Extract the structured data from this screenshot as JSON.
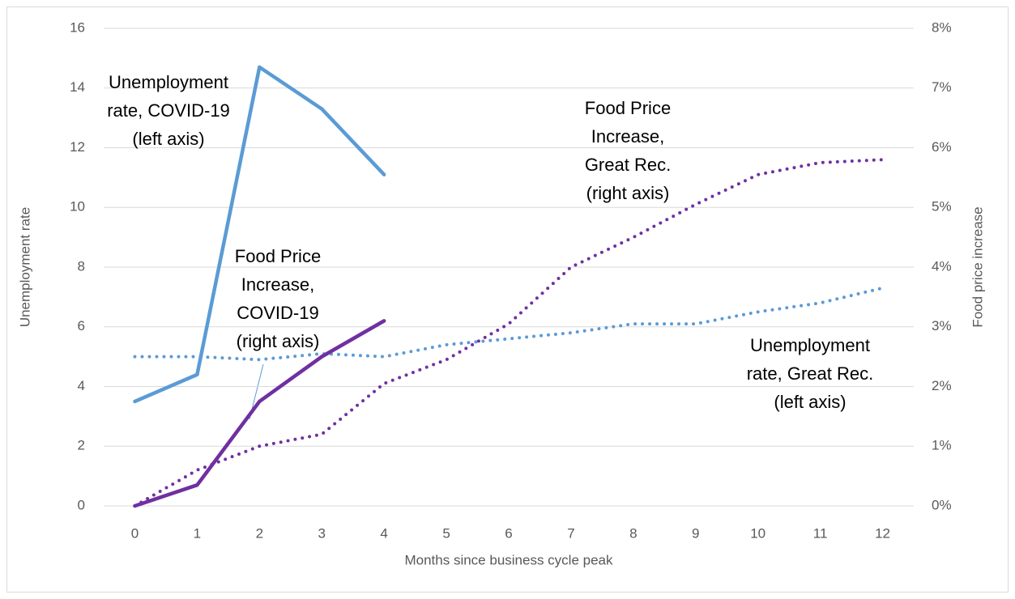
{
  "chart_data": {
    "type": "line",
    "x_label": "Months since business cycle peak",
    "y_label": "Unemployment rate",
    "y2_label": "Food price increase",
    "x": [
      0,
      1,
      2,
      3,
      4,
      5,
      6,
      7,
      8,
      9,
      10,
      11,
      12
    ],
    "xlim": [
      -0.5,
      12.5
    ],
    "ylim": [
      0,
      16
    ],
    "yticks": [
      0,
      2,
      4,
      6,
      8,
      10,
      12,
      14,
      16
    ],
    "y2lim": [
      0,
      8
    ],
    "y2ticks": [
      {
        "value": 0,
        "label": "0%"
      },
      {
        "value": 1,
        "label": "1%"
      },
      {
        "value": 2,
        "label": "2%"
      },
      {
        "value": 3,
        "label": "3%"
      },
      {
        "value": 4,
        "label": "4%"
      },
      {
        "value": 5,
        "label": "5%"
      },
      {
        "value": 6,
        "label": "6%"
      },
      {
        "value": 7,
        "label": "7%"
      },
      {
        "value": 8,
        "label": "8%"
      }
    ],
    "grid": true,
    "series": [
      {
        "color": "#5b9bd5",
        "style": "solid",
        "values": [
          3.5,
          4.4,
          14.7,
          13.3,
          11.1,
          null,
          null,
          null,
          null,
          null,
          null,
          null,
          null
        ]
      },
      {
        "color": "#5b9bd5",
        "style": "dotted",
        "values": [
          5.0,
          5.0,
          4.9,
          5.1,
          5.0,
          5.4,
          5.6,
          5.8,
          6.1,
          6.1,
          6.5,
          6.8,
          7.3
        ]
      },
      {
        "color": "#7030a0",
        "style": "solid",
        "axis": "y2",
        "values": [
          0,
          0.35,
          1.75,
          2.5,
          3.1,
          null,
          null,
          null,
          null,
          null,
          null,
          null,
          null
        ]
      },
      {
        "color": "#7030a0",
        "style": "dotted",
        "axis": "y2",
        "values": [
          0,
          0.6,
          1.0,
          1.2,
          2.05,
          2.45,
          3.05,
          4.0,
          4.5,
          5.05,
          5.55,
          5.75,
          5.8
        ]
      }
    ],
    "annotations": [
      {
        "lines": [
          "Unemployment",
          "rate, COVID-19",
          "(left axis)"
        ]
      },
      {
        "lines": [
          "Food Price",
          "Increase,",
          "Great Rec.",
          "(right axis)"
        ]
      },
      {
        "lines": [
          "Food Price",
          "Increase,",
          "COVID-19",
          "(right axis)"
        ]
      },
      {
        "lines": [
          "Unemployment",
          "rate, Great Rec.",
          "(left axis)"
        ]
      }
    ]
  }
}
